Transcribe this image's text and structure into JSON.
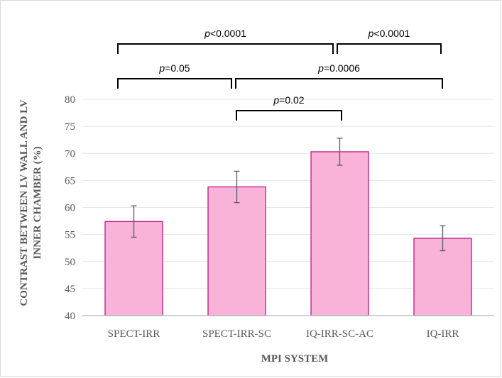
{
  "chart_data": {
    "type": "bar",
    "categories": [
      "SPECT-IRR",
      "SPECT-IRR-SC",
      "IQ-IRR-SC-AC",
      "IQ-IRR"
    ],
    "values": [
      57.4,
      63.8,
      70.3,
      54.3
    ],
    "error": [
      2.9,
      2.9,
      2.5,
      2.3
    ],
    "xlabel": "MPI SYSTEM",
    "ylabel_lines": [
      "CONTRAST BETWEEN LV WALL AND LV",
      "INNER CHAMBER (%)"
    ],
    "ylim": [
      40,
      80
    ],
    "yticks": [
      40,
      45,
      50,
      55,
      60,
      65,
      70,
      75,
      80
    ],
    "grid": true,
    "colors": {
      "bar_fill": "#f9b3d8",
      "bar_stroke": "#c0168a",
      "error_bar": "#595959",
      "grid": "#e5e5e5",
      "axis": "#bfbfbf",
      "bracket": "#000000"
    },
    "annotations": [
      {
        "from": 0,
        "to": 2,
        "p_prefix": "p",
        "p_value": "<0.0001"
      },
      {
        "from": 2,
        "to": 3,
        "p_prefix": "p",
        "p_value": "<0.0001"
      },
      {
        "from": 0,
        "to": 1,
        "p_prefix": "p",
        "p_value": "=0.05"
      },
      {
        "from": 1,
        "to": 3,
        "p_prefix": "p",
        "p_value": "=0.0006"
      },
      {
        "from": 1,
        "to": 2,
        "p_prefix": "p",
        "p_value": "=0.02"
      }
    ]
  }
}
